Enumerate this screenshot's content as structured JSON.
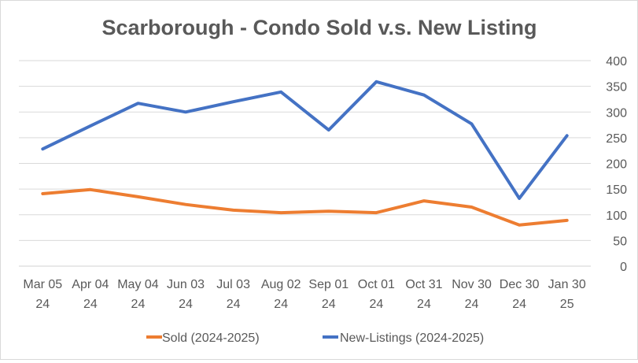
{
  "chart_data": {
    "type": "line",
    "title": "Scarborough - Condo Sold v.s. New Listing",
    "xlabel": "",
    "ylabel": "",
    "categories": [
      [
        "Mar 05",
        "24"
      ],
      [
        "Apr 04",
        "24"
      ],
      [
        "May 04",
        "24"
      ],
      [
        "Jun 03",
        "24"
      ],
      [
        "Jul 03",
        "24"
      ],
      [
        "Aug 02",
        "24"
      ],
      [
        "Sep 01",
        "24"
      ],
      [
        "Oct 01",
        "24"
      ],
      [
        "Oct 31",
        "24"
      ],
      [
        "Nov 30",
        "24"
      ],
      [
        "Dec 30",
        "24"
      ],
      [
        "Jan 30",
        "25"
      ]
    ],
    "ylim": [
      0,
      400
    ],
    "yticks": [
      0,
      50,
      100,
      150,
      200,
      250,
      300,
      350,
      400
    ],
    "y_axis_side": "right",
    "grid": true,
    "legend_position": "bottom",
    "series": [
      {
        "name": "Sold (2024-2025)",
        "color": "#ed7d31",
        "values": [
          141,
          149,
          135,
          120,
          109,
          104,
          107,
          104,
          127,
          115,
          80,
          89
        ]
      },
      {
        "name": "New-Listings (2024-2025)",
        "color": "#4472c4",
        "values": [
          228,
          273,
          317,
          300,
          320,
          339,
          265,
          359,
          333,
          277,
          132,
          254
        ]
      }
    ]
  }
}
